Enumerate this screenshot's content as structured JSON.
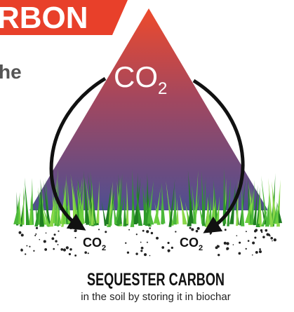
{
  "banner": {
    "text": "RBON"
  },
  "side_text": "he",
  "triangle_label": {
    "main": "CO",
    "sub": "2"
  },
  "soil_labels": [
    {
      "main": "CO",
      "sub": "2"
    },
    {
      "main": "CO",
      "sub": "2"
    }
  ],
  "caption": {
    "title": "SEQUESTER CARBON",
    "subtitle": "in the soil by storing it in biochar"
  }
}
